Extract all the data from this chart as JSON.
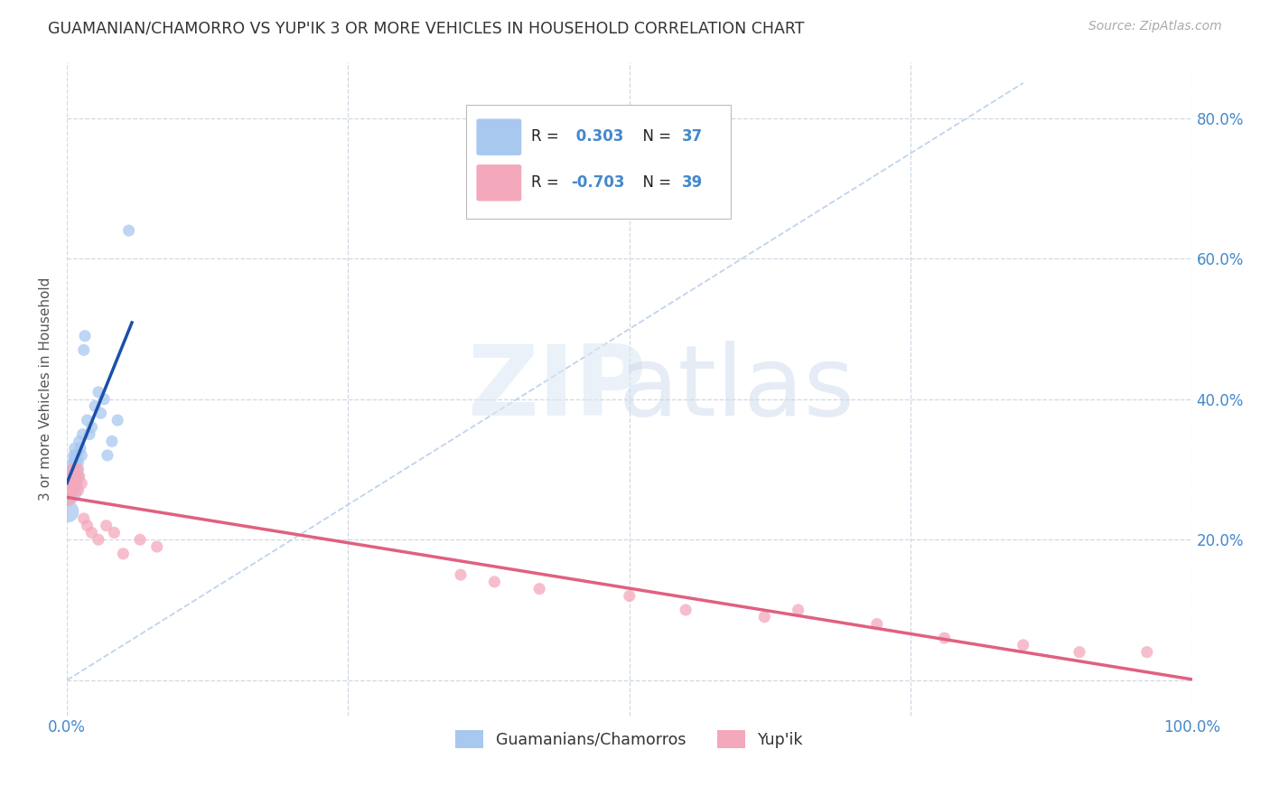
{
  "title": "GUAMANIAN/CHAMORRO VS YUP'IK 3 OR MORE VEHICLES IN HOUSEHOLD CORRELATION CHART",
  "source": "Source: ZipAtlas.com",
  "ylabel": "3 or more Vehicles in Household",
  "xlim": [
    0.0,
    1.0
  ],
  "ylim": [
    -0.05,
    0.88
  ],
  "r_blue": "0.303",
  "n_blue": "37",
  "r_pink": "-0.703",
  "n_pink": "39",
  "blue_color": "#a8c8f0",
  "pink_color": "#f4a8bc",
  "blue_line_color": "#1a50a8",
  "pink_line_color": "#e06080",
  "diagonal_color": "#c0d4ec",
  "legend_labels": [
    "Guamanians/Chamorros",
    "Yup'ik"
  ],
  "blue_x": [
    0.001,
    0.001,
    0.002,
    0.002,
    0.003,
    0.003,
    0.004,
    0.004,
    0.005,
    0.005,
    0.006,
    0.006,
    0.007,
    0.007,
    0.008,
    0.008,
    0.009,
    0.009,
    0.01,
    0.01,
    0.011,
    0.012,
    0.013,
    0.014,
    0.015,
    0.016,
    0.018,
    0.02,
    0.022,
    0.025,
    0.028,
    0.03,
    0.033,
    0.036,
    0.04,
    0.045,
    0.055
  ],
  "blue_y": [
    0.27,
    0.24,
    0.26,
    0.28,
    0.27,
    0.29,
    0.28,
    0.3,
    0.31,
    0.29,
    0.32,
    0.3,
    0.31,
    0.33,
    0.32,
    0.31,
    0.3,
    0.32,
    0.31,
    0.29,
    0.34,
    0.33,
    0.32,
    0.35,
    0.47,
    0.49,
    0.37,
    0.35,
    0.36,
    0.39,
    0.41,
    0.38,
    0.4,
    0.32,
    0.34,
    0.37,
    0.64
  ],
  "blue_large_idx": 0,
  "pink_x": [
    0.001,
    0.001,
    0.002,
    0.003,
    0.003,
    0.004,
    0.005,
    0.005,
    0.006,
    0.006,
    0.007,
    0.007,
    0.008,
    0.009,
    0.01,
    0.01,
    0.011,
    0.013,
    0.015,
    0.018,
    0.022,
    0.028,
    0.035,
    0.042,
    0.05,
    0.065,
    0.08,
    0.35,
    0.38,
    0.42,
    0.5,
    0.55,
    0.62,
    0.65,
    0.72,
    0.78,
    0.85,
    0.9,
    0.96
  ],
  "pink_y": [
    0.28,
    0.26,
    0.27,
    0.29,
    0.27,
    0.28,
    0.3,
    0.28,
    0.29,
    0.27,
    0.3,
    0.28,
    0.29,
    0.28,
    0.3,
    0.27,
    0.29,
    0.28,
    0.23,
    0.22,
    0.21,
    0.2,
    0.22,
    0.21,
    0.18,
    0.2,
    0.19,
    0.15,
    0.14,
    0.13,
    0.12,
    0.1,
    0.09,
    0.1,
    0.08,
    0.06,
    0.05,
    0.04,
    0.04
  ],
  "pink_large_idx": 0,
  "xtick_positions": [
    0.0,
    0.25,
    0.5,
    0.75,
    1.0
  ],
  "xtick_labels": [
    "0.0%",
    "",
    "",
    "",
    "100.0%"
  ],
  "ytick_positions": [
    0.0,
    0.2,
    0.4,
    0.6,
    0.8
  ],
  "right_ytick_labels": [
    "",
    "20.0%",
    "40.0%",
    "60.0%",
    "80.0%"
  ],
  "grid_color": "#d0d8e4",
  "text_blue": "#4488cc",
  "legend_text_dark": "#222222"
}
